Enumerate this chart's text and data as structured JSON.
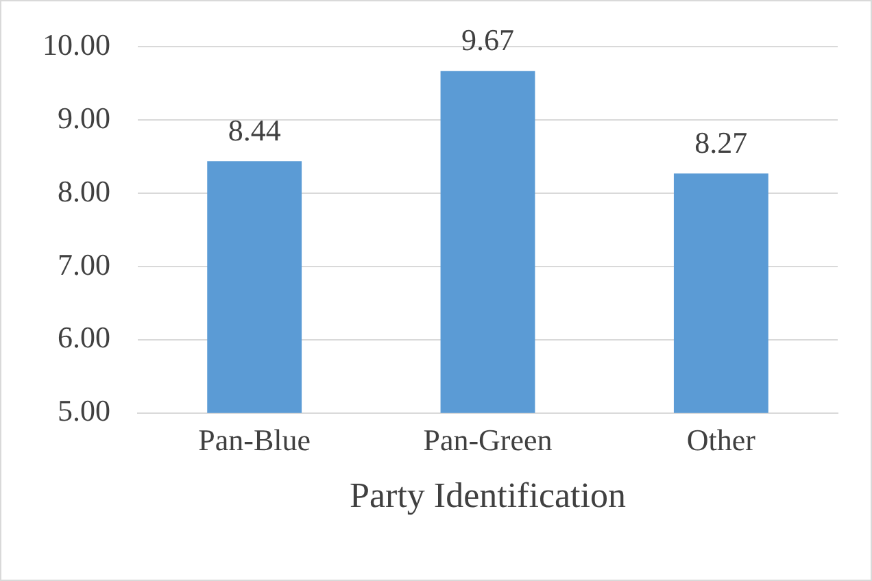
{
  "chart_data": {
    "type": "bar",
    "xlabel": "Party Identification",
    "categories": [
      "Pan-Blue",
      "Pan-Green",
      "Other"
    ],
    "values": [
      8.44,
      9.67,
      8.27
    ],
    "color": "#5b9bd5",
    "ylim": [
      5,
      10
    ],
    "yticks": [
      {
        "value": 5,
        "label": "5.00"
      },
      {
        "value": 6,
        "label": "6.00"
      },
      {
        "value": 7,
        "label": "7.00"
      },
      {
        "value": 8,
        "label": "8.00"
      },
      {
        "value": 9,
        "label": "9.00"
      },
      {
        "value": 10,
        "label": "10.00"
      }
    ],
    "grid": "y",
    "data_labels": true
  }
}
